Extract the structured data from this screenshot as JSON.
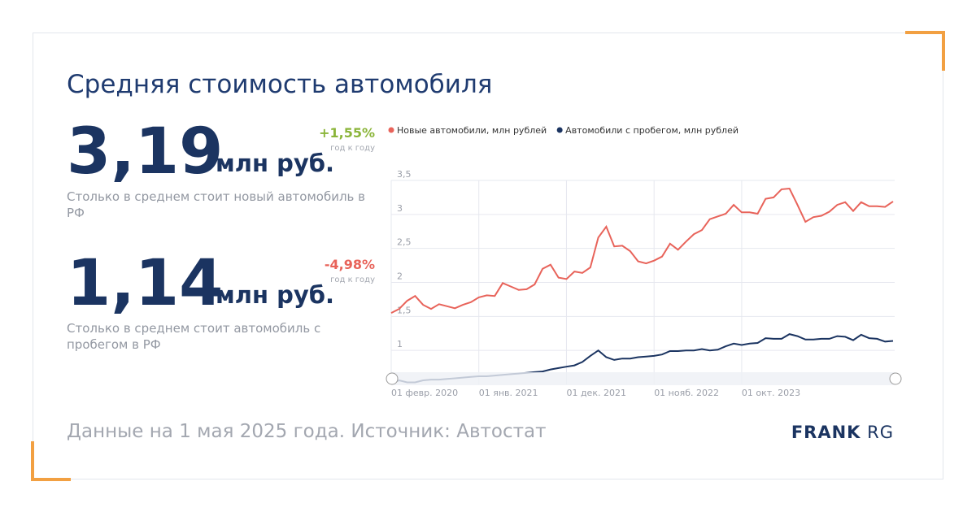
{
  "title": "Средняя стоимость автомобиля",
  "kpis": [
    {
      "value": "3,19",
      "unit": "млн руб.",
      "change": "+1,55%",
      "change_note": "год к году",
      "description": "Столько в среднем стоит новый автомобиль в РФ"
    },
    {
      "value": "1,14",
      "unit": "млн руб.",
      "change": "-4,98%",
      "change_note": "год к году",
      "description": "Столько в среднем стоит автомобиль с пробегом в РФ"
    }
  ],
  "footer": "Данные на 1 мая 2025 года. Источник: Автостат",
  "logo": {
    "bold": "FRANK",
    "light": "RG"
  },
  "chart_data": {
    "type": "line",
    "categories": [
      "01 февр. 2020",
      null,
      null,
      null,
      null,
      null,
      null,
      null,
      null,
      null,
      null,
      "01 янв. 2021",
      null,
      null,
      null,
      null,
      null,
      null,
      null,
      null,
      null,
      null,
      "01 дек. 2021",
      null,
      null,
      null,
      null,
      null,
      null,
      null,
      null,
      null,
      null,
      "01 нояб. 2022",
      null,
      null,
      null,
      null,
      null,
      null,
      null,
      null,
      null,
      null,
      "01 окт. 2023",
      null,
      null,
      null,
      null,
      null,
      null,
      null,
      null,
      null,
      null,
      null,
      null,
      null,
      null,
      null,
      null,
      null,
      null,
      null
    ],
    "series": [
      {
        "name": "Новые автомобили, млн рублей",
        "color": "#e8635a",
        "values": [
          1.55,
          1.61,
          1.73,
          1.8,
          1.67,
          1.61,
          1.68,
          1.65,
          1.62,
          1.67,
          1.71,
          1.78,
          1.81,
          1.8,
          1.99,
          1.94,
          1.89,
          1.9,
          1.97,
          2.2,
          2.26,
          2.07,
          2.05,
          2.16,
          2.14,
          2.22,
          2.66,
          2.82,
          2.53,
          2.54,
          2.46,
          2.31,
          2.28,
          2.32,
          2.38,
          2.57,
          2.48,
          2.6,
          2.71,
          2.77,
          2.93,
          2.97,
          3.01,
          3.14,
          3.03,
          3.03,
          3.01,
          3.23,
          3.25,
          3.37,
          3.38,
          3.14,
          2.89,
          2.96,
          2.98,
          3.04,
          3.14,
          3.18,
          3.05,
          3.18,
          3.12,
          3.12,
          3.11,
          3.19
        ]
      },
      {
        "name": "Автомобили с пробегом, млн рублей",
        "color": "#1b3461",
        "values": [
          0.52,
          0.56,
          0.53,
          0.53,
          0.56,
          0.57,
          0.57,
          0.58,
          0.59,
          0.6,
          0.61,
          0.62,
          0.62,
          0.63,
          0.64,
          0.65,
          0.66,
          0.67,
          0.68,
          0.69,
          0.72,
          0.74,
          0.76,
          0.78,
          0.83,
          0.92,
          1.0,
          0.9,
          0.86,
          0.88,
          0.88,
          0.9,
          0.91,
          0.92,
          0.94,
          0.99,
          0.99,
          1.0,
          1.0,
          1.02,
          1.0,
          1.01,
          1.06,
          1.1,
          1.08,
          1.1,
          1.11,
          1.18,
          1.17,
          1.17,
          1.24,
          1.21,
          1.16,
          1.16,
          1.17,
          1.17,
          1.21,
          1.2,
          1.15,
          1.23,
          1.18,
          1.17,
          1.13,
          1.14
        ]
      }
    ],
    "ylim": [
      0.5,
      3.5
    ],
    "yticks": [
      1,
      {
        "value": 1.5,
        "label": "1,5"
      },
      2,
      {
        "value": 2.5,
        "label": "2,5"
      },
      3,
      {
        "value": 3.5,
        "label": "3,5"
      }
    ],
    "grid": true
  }
}
